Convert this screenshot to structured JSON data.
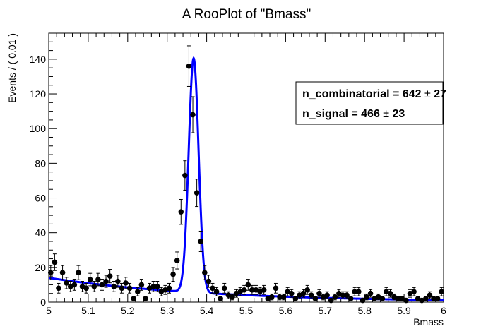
{
  "chart_data": {
    "type": "scatter",
    "title": "A RooPlot of \"Bmass\"",
    "xlabel": "Bmass",
    "ylabel": "Events / ( 0.01 )",
    "xlim": [
      5.0,
      6.0
    ],
    "ylim": [
      0,
      155
    ],
    "x_ticks": [
      "5",
      "5.1",
      "5.2",
      "5.3",
      "5.4",
      "5.5",
      "5.6",
      "5.7",
      "5.8",
      "5.9",
      "6"
    ],
    "y_ticks": [
      "0",
      "20",
      "40",
      "60",
      "80",
      "100",
      "120",
      "140"
    ],
    "grid": false,
    "legend": "none",
    "series": [
      {
        "type": "points-with-errors",
        "color": "#000000",
        "bin_width": 0.01,
        "x": [
          5.005,
          5.015,
          5.025,
          5.035,
          5.045,
          5.055,
          5.065,
          5.075,
          5.085,
          5.095,
          5.105,
          5.115,
          5.125,
          5.135,
          5.145,
          5.155,
          5.165,
          5.175,
          5.185,
          5.195,
          5.205,
          5.215,
          5.225,
          5.235,
          5.245,
          5.255,
          5.265,
          5.275,
          5.285,
          5.295,
          5.305,
          5.315,
          5.325,
          5.335,
          5.345,
          5.355,
          5.365,
          5.375,
          5.385,
          5.395,
          5.405,
          5.415,
          5.425,
          5.435,
          5.445,
          5.455,
          5.465,
          5.475,
          5.485,
          5.495,
          5.505,
          5.515,
          5.525,
          5.535,
          5.545,
          5.555,
          5.565,
          5.575,
          5.585,
          5.595,
          5.605,
          5.615,
          5.625,
          5.635,
          5.645,
          5.655,
          5.665,
          5.675,
          5.685,
          5.695,
          5.705,
          5.715,
          5.725,
          5.735,
          5.745,
          5.755,
          5.765,
          5.775,
          5.785,
          5.795,
          5.805,
          5.815,
          5.825,
          5.835,
          5.845,
          5.855,
          5.865,
          5.875,
          5.885,
          5.895,
          5.905,
          5.915,
          5.925,
          5.935,
          5.945,
          5.955,
          5.965,
          5.975,
          5.985,
          5.995
        ],
        "y": [
          17,
          23,
          8,
          17,
          11,
          9,
          10,
          17,
          9,
          8,
          13,
          9,
          13,
          10,
          12,
          15,
          9,
          12,
          8,
          11,
          8,
          2,
          6,
          10,
          2,
          8,
          9,
          9,
          6,
          7,
          8,
          16,
          24,
          52,
          73,
          136,
          108,
          63,
          35,
          17,
          12,
          8,
          6,
          2,
          8,
          4,
          3,
          5,
          6,
          7,
          10,
          7,
          7,
          6,
          7,
          2,
          3,
          8,
          3,
          3,
          6,
          5,
          2,
          4,
          5,
          7,
          4,
          2,
          5,
          3,
          4,
          1,
          3,
          5,
          4,
          4,
          2,
          6,
          6,
          1,
          3,
          5,
          2,
          3,
          2,
          6,
          5,
          3,
          2,
          2,
          1,
          5,
          6,
          2,
          1,
          2,
          4,
          2,
          2,
          6
        ],
        "yerr": [
          4.1,
          4.8,
          2.8,
          4.1,
          3.3,
          3.0,
          3.2,
          4.1,
          3.0,
          2.8,
          3.6,
          3.0,
          3.6,
          3.2,
          3.5,
          3.9,
          3.0,
          3.5,
          2.8,
          3.3,
          2.8,
          1.4,
          2.4,
          3.2,
          1.4,
          2.8,
          3.0,
          3.0,
          2.4,
          2.6,
          2.8,
          4.0,
          4.9,
          7.2,
          8.5,
          11.7,
          10.4,
          7.9,
          5.9,
          4.1,
          3.5,
          2.8,
          2.4,
          1.4,
          2.8,
          2.0,
          1.7,
          2.2,
          2.4,
          2.6,
          3.2,
          2.6,
          2.6,
          2.4,
          2.6,
          1.4,
          1.7,
          2.8,
          1.7,
          1.7,
          2.4,
          2.2,
          1.4,
          2.0,
          2.2,
          2.6,
          2.0,
          1.4,
          2.2,
          1.7,
          2.0,
          1.0,
          1.7,
          2.2,
          2.0,
          2.0,
          1.4,
          2.4,
          2.4,
          1.0,
          1.7,
          2.2,
          1.4,
          1.7,
          1.4,
          2.4,
          2.2,
          1.7,
          1.4,
          1.4,
          1.0,
          2.2,
          2.4,
          1.4,
          1.0,
          1.4,
          2.0,
          1.4,
          1.4,
          2.4
        ]
      },
      {
        "type": "fit-curve",
        "color": "#0000ff",
        "model": "gaussian peak plus exponential background",
        "peak_mean": 5.367,
        "peak_sigma": 0.0125,
        "peak_height": 135,
        "background_at_5_0": 14.0,
        "background_slope": -2.5
      }
    ],
    "annotations": [
      {
        "label": "n_combinatorial = ",
        "value": "642",
        "pm": "±",
        "error": "27"
      },
      {
        "label": "n_signal = ",
        "value": "466",
        "pm": "±",
        "error": "23"
      }
    ]
  }
}
